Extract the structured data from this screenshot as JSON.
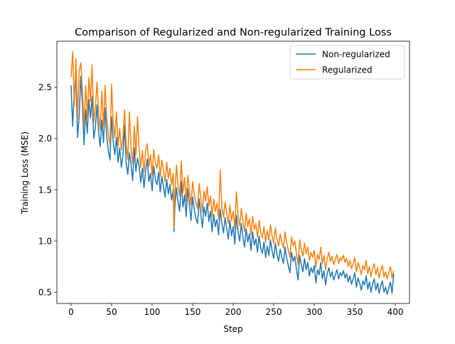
{
  "chart_data": {
    "type": "line",
    "title": "Comparison of Regularized and Non-regularized Training Loss",
    "xlabel": "Step",
    "ylabel": "Training Loss (MSE)",
    "xlim": [
      -17.5,
      417.5
    ],
    "ylim": [
      0.39,
      2.95
    ],
    "xticks": [
      0,
      50,
      100,
      150,
      200,
      250,
      300,
      350,
      400
    ],
    "xtick_labels": [
      "0",
      "50",
      "100",
      "150",
      "200",
      "250",
      "300",
      "350",
      "400"
    ],
    "yticks": [
      0.5,
      1.0,
      1.5,
      2.0,
      2.5
    ],
    "ytick_labels": [
      "0.5",
      "1.0",
      "1.5",
      "2.0",
      "2.5"
    ],
    "grid": false,
    "legend_position": "top-right",
    "series": [
      {
        "name": "Non-regularized",
        "color": "#1f77b4",
        "x": [
          0,
          2,
          4,
          6,
          8,
          10,
          12,
          14,
          16,
          18,
          20,
          22,
          24,
          26,
          28,
          30,
          32,
          34,
          36,
          38,
          40,
          42,
          44,
          46,
          48,
          50,
          52,
          54,
          56,
          58,
          60,
          62,
          64,
          66,
          68,
          70,
          72,
          74,
          76,
          78,
          80,
          82,
          84,
          86,
          88,
          90,
          92,
          94,
          96,
          98,
          100,
          102,
          104,
          106,
          108,
          110,
          112,
          114,
          116,
          118,
          120,
          122,
          124,
          126,
          127,
          128,
          130,
          132,
          134,
          136,
          138,
          140,
          142,
          144,
          146,
          148,
          150,
          152,
          154,
          156,
          158,
          160,
          162,
          164,
          166,
          168,
          170,
          172,
          174,
          176,
          178,
          180,
          182,
          184,
          186,
          188,
          190,
          192,
          194,
          196,
          198,
          200,
          202,
          204,
          206,
          208,
          210,
          212,
          214,
          216,
          218,
          220,
          222,
          224,
          226,
          228,
          230,
          232,
          234,
          236,
          238,
          240,
          242,
          244,
          246,
          248,
          250,
          252,
          254,
          256,
          258,
          260,
          262,
          264,
          266,
          268,
          270,
          272,
          274,
          276,
          278,
          280,
          282,
          284,
          286,
          288,
          290,
          292,
          294,
          296,
          298,
          300,
          302,
          304,
          306,
          308,
          310,
          312,
          314,
          316,
          318,
          320,
          322,
          324,
          326,
          328,
          330,
          332,
          334,
          336,
          338,
          340,
          342,
          344,
          346,
          348,
          350,
          352,
          354,
          356,
          358,
          360,
          362,
          364,
          366,
          368,
          370,
          372,
          374,
          376,
          378,
          380,
          382,
          384,
          386,
          388,
          390,
          392,
          394,
          396,
          398
        ],
        "y": [
          2.52,
          2.12,
          2.47,
          2.58,
          2.01,
          2.22,
          2.61,
          2.33,
          1.94,
          2.28,
          2.05,
          2.38,
          2.2,
          2.41,
          2.0,
          2.11,
          2.33,
          2.06,
          1.92,
          2.18,
          1.96,
          2.3,
          2.02,
          1.88,
          1.79,
          2.21,
          1.97,
          1.84,
          2.01,
          1.77,
          1.91,
          1.72,
          1.83,
          2.13,
          1.76,
          1.65,
          1.86,
          1.74,
          1.59,
          1.91,
          1.68,
          1.81,
          1.73,
          1.57,
          1.71,
          1.52,
          1.69,
          1.8,
          1.58,
          1.66,
          1.49,
          1.73,
          1.6,
          1.55,
          1.67,
          1.48,
          1.63,
          1.53,
          1.43,
          1.6,
          1.46,
          1.55,
          1.4,
          1.5,
          1.09,
          1.32,
          1.52,
          1.38,
          1.29,
          1.58,
          1.33,
          1.45,
          1.24,
          1.51,
          1.36,
          1.2,
          1.43,
          1.31,
          1.22,
          1.17,
          1.41,
          1.27,
          1.13,
          1.33,
          1.24,
          1.37,
          1.19,
          1.29,
          1.09,
          1.26,
          1.14,
          1.21,
          1.06,
          1.31,
          1.17,
          1.08,
          1.23,
          1.12,
          1.02,
          1.2,
          1.05,
          1.14,
          0.97,
          1.25,
          1.09,
          1.0,
          1.17,
          1.04,
          0.94,
          1.12,
          0.99,
          1.07,
          0.91,
          1.09,
          0.96,
          1.02,
          0.89,
          1.05,
          0.93,
          0.88,
          0.99,
          0.84,
          0.95,
          0.86,
          1.01,
          0.9,
          0.83,
          0.98,
          0.87,
          0.8,
          0.92,
          0.84,
          0.78,
          0.94,
          0.83,
          0.76,
          0.69,
          0.89,
          0.8,
          0.85,
          0.73,
          0.62,
          0.86,
          0.77,
          0.7,
          0.83,
          0.72,
          0.79,
          0.66,
          0.74,
          0.69,
          0.76,
          0.59,
          0.72,
          0.67,
          0.79,
          0.63,
          0.71,
          0.57,
          0.68,
          0.74,
          0.65,
          0.7,
          0.62,
          0.67,
          0.72,
          0.63,
          0.69,
          0.66,
          0.71,
          0.64,
          0.68,
          0.6,
          0.66,
          0.58,
          0.63,
          0.69,
          0.55,
          0.64,
          0.59,
          0.52,
          0.61,
          0.57,
          0.66,
          0.53,
          0.6,
          0.5,
          0.58,
          0.63,
          0.52,
          0.59,
          0.49,
          0.56,
          0.61,
          0.5,
          0.55,
          0.48,
          0.54,
          0.6,
          0.49,
          0.68
        ]
      },
      {
        "name": "Regularized",
        "color": "#ff7f0e",
        "x": [
          0,
          2,
          4,
          6,
          8,
          10,
          12,
          14,
          16,
          18,
          20,
          22,
          24,
          26,
          28,
          30,
          32,
          34,
          36,
          38,
          40,
          42,
          44,
          46,
          48,
          50,
          52,
          54,
          56,
          58,
          60,
          62,
          64,
          66,
          68,
          70,
          72,
          74,
          76,
          78,
          80,
          82,
          84,
          86,
          88,
          90,
          92,
          94,
          96,
          98,
          100,
          102,
          104,
          106,
          108,
          110,
          112,
          114,
          116,
          118,
          120,
          122,
          124,
          126,
          127,
          128,
          130,
          132,
          134,
          136,
          138,
          140,
          142,
          144,
          146,
          148,
          150,
          152,
          154,
          156,
          158,
          160,
          162,
          164,
          166,
          168,
          170,
          172,
          174,
          176,
          178,
          180,
          182,
          184,
          186,
          188,
          190,
          192,
          194,
          196,
          198,
          200,
          202,
          204,
          206,
          208,
          210,
          212,
          214,
          216,
          218,
          220,
          222,
          224,
          226,
          228,
          230,
          232,
          234,
          236,
          238,
          240,
          242,
          244,
          246,
          248,
          250,
          252,
          254,
          256,
          258,
          260,
          262,
          264,
          266,
          268,
          270,
          272,
          274,
          276,
          278,
          280,
          282,
          284,
          286,
          288,
          290,
          292,
          294,
          296,
          298,
          300,
          302,
          304,
          306,
          308,
          310,
          312,
          314,
          316,
          318,
          320,
          322,
          324,
          326,
          328,
          330,
          332,
          334,
          336,
          338,
          340,
          342,
          344,
          346,
          348,
          350,
          352,
          354,
          356,
          358,
          360,
          362,
          364,
          366,
          368,
          370,
          372,
          374,
          376,
          378,
          380,
          382,
          384,
          386,
          388,
          390,
          392,
          394,
          396,
          398
        ],
        "y": [
          2.6,
          2.85,
          2.32,
          2.78,
          2.19,
          2.66,
          2.74,
          2.47,
          2.11,
          2.52,
          2.2,
          2.6,
          2.36,
          2.72,
          2.16,
          2.3,
          2.55,
          2.25,
          2.08,
          2.46,
          2.12,
          2.52,
          2.2,
          2.04,
          1.94,
          2.53,
          2.15,
          2.01,
          2.26,
          1.93,
          2.1,
          1.89,
          2.01,
          2.28,
          1.94,
          1.8,
          2.26,
          1.9,
          1.75,
          2.12,
          1.84,
          2.21,
          1.9,
          1.72,
          1.88,
          1.67,
          1.89,
          1.95,
          1.73,
          1.84,
          1.64,
          1.89,
          1.76,
          1.71,
          1.84,
          1.63,
          1.79,
          1.69,
          1.58,
          1.77,
          1.61,
          1.71,
          1.55,
          1.66,
          1.13,
          1.46,
          1.74,
          1.53,
          1.44,
          1.78,
          1.47,
          1.62,
          1.39,
          1.64,
          1.5,
          1.35,
          1.58,
          1.46,
          1.37,
          1.32,
          1.56,
          1.42,
          1.28,
          1.49,
          1.39,
          1.53,
          1.34,
          1.44,
          1.24,
          1.41,
          1.29,
          1.37,
          1.21,
          1.69,
          1.33,
          1.23,
          1.38,
          1.27,
          1.17,
          1.35,
          1.2,
          1.29,
          1.12,
          1.48,
          1.24,
          1.15,
          1.32,
          1.19,
          1.09,
          1.27,
          1.14,
          1.22,
          1.06,
          1.24,
          1.11,
          1.17,
          1.04,
          1.2,
          1.08,
          1.03,
          1.14,
          0.99,
          1.1,
          1.01,
          1.16,
          1.05,
          0.98,
          1.13,
          1.02,
          0.95,
          1.07,
          0.99,
          0.93,
          1.09,
          0.98,
          0.91,
          0.84,
          1.04,
          0.95,
          1.0,
          0.88,
          0.77,
          1.01,
          0.92,
          0.85,
          0.98,
          0.87,
          0.94,
          0.81,
          0.89,
          0.84,
          0.91,
          0.74,
          0.87,
          0.82,
          0.94,
          0.78,
          0.86,
          0.72,
          0.83,
          0.89,
          0.8,
          0.85,
          0.77,
          0.82,
          0.87,
          0.78,
          0.84,
          0.81,
          0.86,
          0.79,
          0.83,
          0.75,
          0.81,
          0.73,
          0.78,
          0.84,
          0.7,
          0.79,
          0.74,
          0.67,
          0.76,
          0.72,
          0.81,
          0.68,
          0.75,
          0.65,
          0.73,
          0.78,
          0.67,
          0.74,
          0.64,
          0.71,
          0.76,
          0.65,
          0.7,
          0.63,
          0.69,
          0.75,
          0.64,
          0.71
        ]
      }
    ]
  }
}
